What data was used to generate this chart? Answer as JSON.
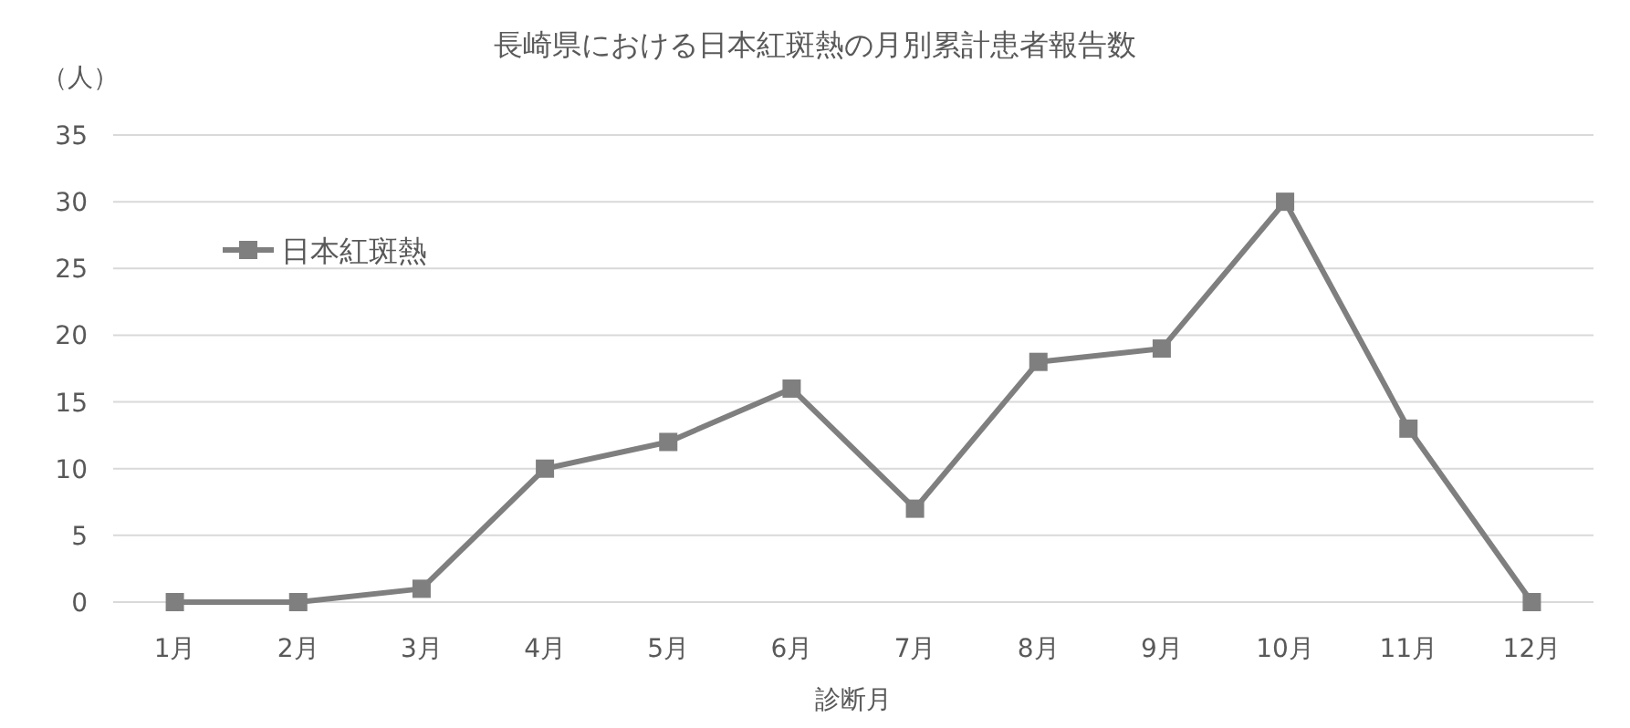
{
  "chart_data": {
    "type": "line",
    "title": "長崎県における日本紅斑熱の月別累計患者報告数",
    "ylabel": "（人）",
    "xlabel": "診断月",
    "categories": [
      "1月",
      "2月",
      "3月",
      "4月",
      "5月",
      "6月",
      "7月",
      "8月",
      "9月",
      "10月",
      "11月",
      "12月"
    ],
    "series": [
      {
        "name": "日本紅斑熱",
        "color": "#7f7f7f",
        "values": [
          0,
          0,
          1,
          10,
          12,
          16,
          7,
          18,
          19,
          30,
          13,
          0
        ]
      }
    ],
    "ylim": [
      0,
      35
    ],
    "yticks": [
      0,
      5,
      10,
      15,
      20,
      25,
      30,
      35
    ],
    "grid": "y",
    "legend": "top left",
    "marker": "square",
    "line_style": "solid"
  }
}
